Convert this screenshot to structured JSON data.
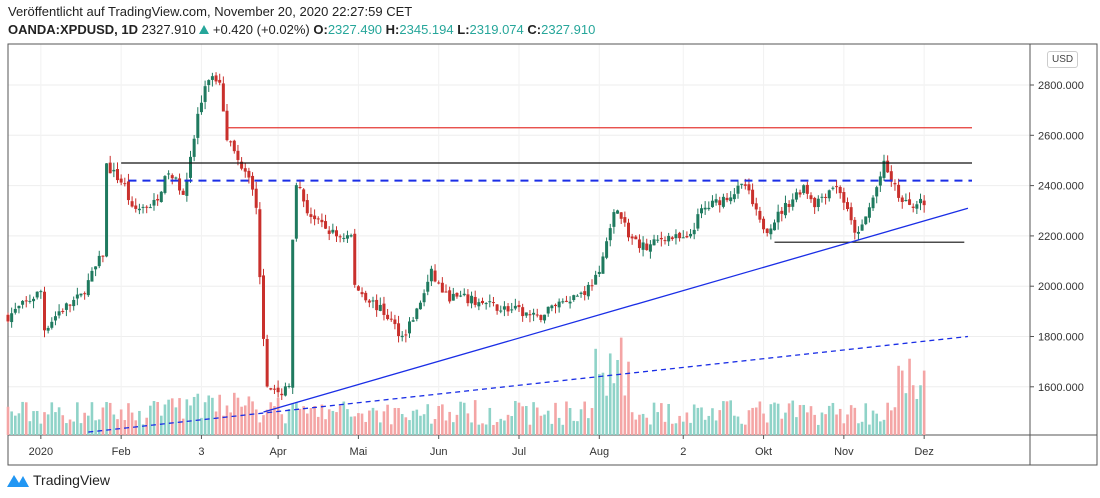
{
  "header": {
    "published": "Veröffentlicht auf TradingView.com, November 20, 2020 22:27:59 CET",
    "symbol": "OANDA:XPDUSD, 1D",
    "last": "2327.910",
    "change": "+0.420 (+0.02%)",
    "o_label": "O:",
    "o": "2327.490",
    "h_label": "H:",
    "h": "2345.194",
    "l_label": "L:",
    "l": "2319.074",
    "c_label": "C:",
    "c": "2327.910"
  },
  "currency": "USD",
  "footer": {
    "brand": "TradingView"
  },
  "colors": {
    "up": "#1f7a5f",
    "down": "#c9302c",
    "vol_up": "#8fd3c8",
    "vol_down": "#f4a5a5",
    "trend": "#1a2ee6",
    "resistance_red": "#e53935"
  },
  "chart_data": {
    "type": "candlestick",
    "title": "OANDA:XPDUSD, 1D",
    "ylim": [
      1420,
      2960
    ],
    "y_ticks": [
      "2800.000",
      "2600.000",
      "2400.000",
      "2200.000",
      "2000.000",
      "1800.000",
      "1600.000"
    ],
    "x_ticks": [
      "2020",
      "Feb",
      "3",
      "Apr",
      "Mai",
      "Jun",
      "Jul",
      "Aug",
      "2",
      "Okt",
      "Nov",
      "Dez"
    ],
    "x_tick_days": [
      9,
      31,
      53,
      74,
      96,
      118,
      140,
      162,
      185,
      207,
      229,
      251
    ],
    "total_days": 252,
    "close_keypoints": [
      [
        0,
        1880
      ],
      [
        9,
        1980
      ],
      [
        10,
        1830
      ],
      [
        14,
        1900
      ],
      [
        20,
        1960
      ],
      [
        26,
        2130
      ],
      [
        27,
        2480
      ],
      [
        32,
        2400
      ],
      [
        34,
        2300
      ],
      [
        40,
        2330
      ],
      [
        44,
        2450
      ],
      [
        48,
        2380
      ],
      [
        50,
        2500
      ],
      [
        52,
        2680
      ],
      [
        55,
        2830
      ],
      [
        58,
        2820
      ],
      [
        60,
        2600
      ],
      [
        63,
        2500
      ],
      [
        66,
        2450
      ],
      [
        67,
        2400
      ],
      [
        68,
        2300
      ],
      [
        70,
        1800
      ],
      [
        71,
        1620
      ],
      [
        74,
        1560
      ],
      [
        77,
        1620
      ],
      [
        78,
        2200
      ],
      [
        79,
        2420
      ],
      [
        82,
        2300
      ],
      [
        85,
        2250
      ],
      [
        90,
        2200
      ],
      [
        94,
        2200
      ],
      [
        95,
        2000
      ],
      [
        98,
        1960
      ],
      [
        104,
        1880
      ],
      [
        108,
        1800
      ],
      [
        112,
        1900
      ],
      [
        116,
        2050
      ],
      [
        120,
        1960
      ],
      [
        125,
        1950
      ],
      [
        133,
        1920
      ],
      [
        140,
        1900
      ],
      [
        145,
        1870
      ],
      [
        150,
        1930
      ],
      [
        158,
        1980
      ],
      [
        162,
        2050
      ],
      [
        165,
        2250
      ],
      [
        167,
        2320
      ],
      [
        170,
        2200
      ],
      [
        175,
        2150
      ],
      [
        180,
        2200
      ],
      [
        186,
        2180
      ],
      [
        190,
        2300
      ],
      [
        196,
        2350
      ],
      [
        202,
        2400
      ],
      [
        206,
        2250
      ],
      [
        208,
        2230
      ],
      [
        212,
        2300
      ],
      [
        218,
        2400
      ],
      [
        221,
        2330
      ],
      [
        226,
        2400
      ],
      [
        228,
        2380
      ],
      [
        231,
        2250
      ],
      [
        233,
        2200
      ],
      [
        237,
        2350
      ],
      [
        240,
        2480
      ],
      [
        242,
        2420
      ],
      [
        245,
        2330
      ],
      [
        251,
        2328
      ]
    ],
    "horizontal_levels": [
      {
        "price": 2630,
        "from_day": 60,
        "style": "solid",
        "color": "red"
      },
      {
        "price": 2490,
        "from_day": 31,
        "style": "solid",
        "color": "black"
      },
      {
        "price": 2420,
        "from_day": 33,
        "style": "dashed",
        "color": "blue"
      },
      {
        "price": 2175,
        "from_day": 210,
        "to_day": 262,
        "style": "solid",
        "color": "black"
      }
    ],
    "trendlines": [
      {
        "from": [
          70,
          1500
        ],
        "to": [
          263,
          2310
        ],
        "style": "solid"
      },
      {
        "from": [
          22,
          1420
        ],
        "to": [
          263,
          1800
        ],
        "style": "dashed"
      }
    ]
  }
}
